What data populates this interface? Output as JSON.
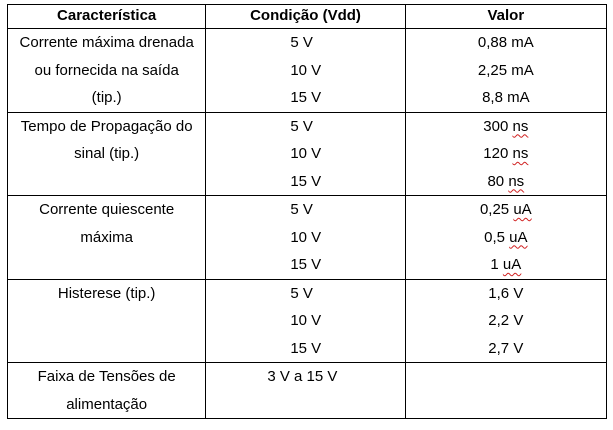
{
  "header": {
    "characteristic": "Característica",
    "condition": "Condição (Vdd)",
    "value": "Valor"
  },
  "rows": [
    {
      "characteristic_lines": [
        "Corrente máxima drenada",
        "ou fornecida na saída",
        "(tip.)"
      ],
      "conditions": [
        "5 V",
        "10 V",
        "15 V"
      ],
      "values": [
        {
          "num": "0,88",
          "unit": "mA"
        },
        {
          "num": "2,25",
          "unit": "mA"
        },
        {
          "num": "8,8",
          "unit": "mA"
        }
      ]
    },
    {
      "characteristic_lines": [
        "Tempo de Propagação do",
        "sinal (tip.)"
      ],
      "conditions": [
        "5 V",
        "10 V",
        "15 V"
      ],
      "values": [
        {
          "num": "300",
          "unit": "ns"
        },
        {
          "num": "120",
          "unit": "ns"
        },
        {
          "num": "80",
          "unit": "ns"
        }
      ]
    },
    {
      "characteristic_lines": [
        "Corrente quiescente",
        "máxima"
      ],
      "conditions": [
        "5 V",
        "10 V",
        "15 V"
      ],
      "values": [
        {
          "num": "0,25",
          "unit": "uA"
        },
        {
          "num": "0,5",
          "unit": "uA"
        },
        {
          "num": "1",
          "unit": "uA"
        }
      ]
    },
    {
      "characteristic_lines": [
        "Histerese (tip.)"
      ],
      "conditions": [
        "5 V",
        "10 V",
        "15 V"
      ],
      "values": [
        {
          "num": "1,6",
          "unit": "V"
        },
        {
          "num": "2,2",
          "unit": "V"
        },
        {
          "num": "2,7",
          "unit": "V"
        }
      ]
    },
    {
      "characteristic_lines": [
        "Faixa de Tensões de",
        "alimentação"
      ],
      "conditions": [
        "3 V a 15 V"
      ],
      "values": []
    }
  ],
  "spellcheck_flagged_units": [
    "ns",
    "uA"
  ]
}
